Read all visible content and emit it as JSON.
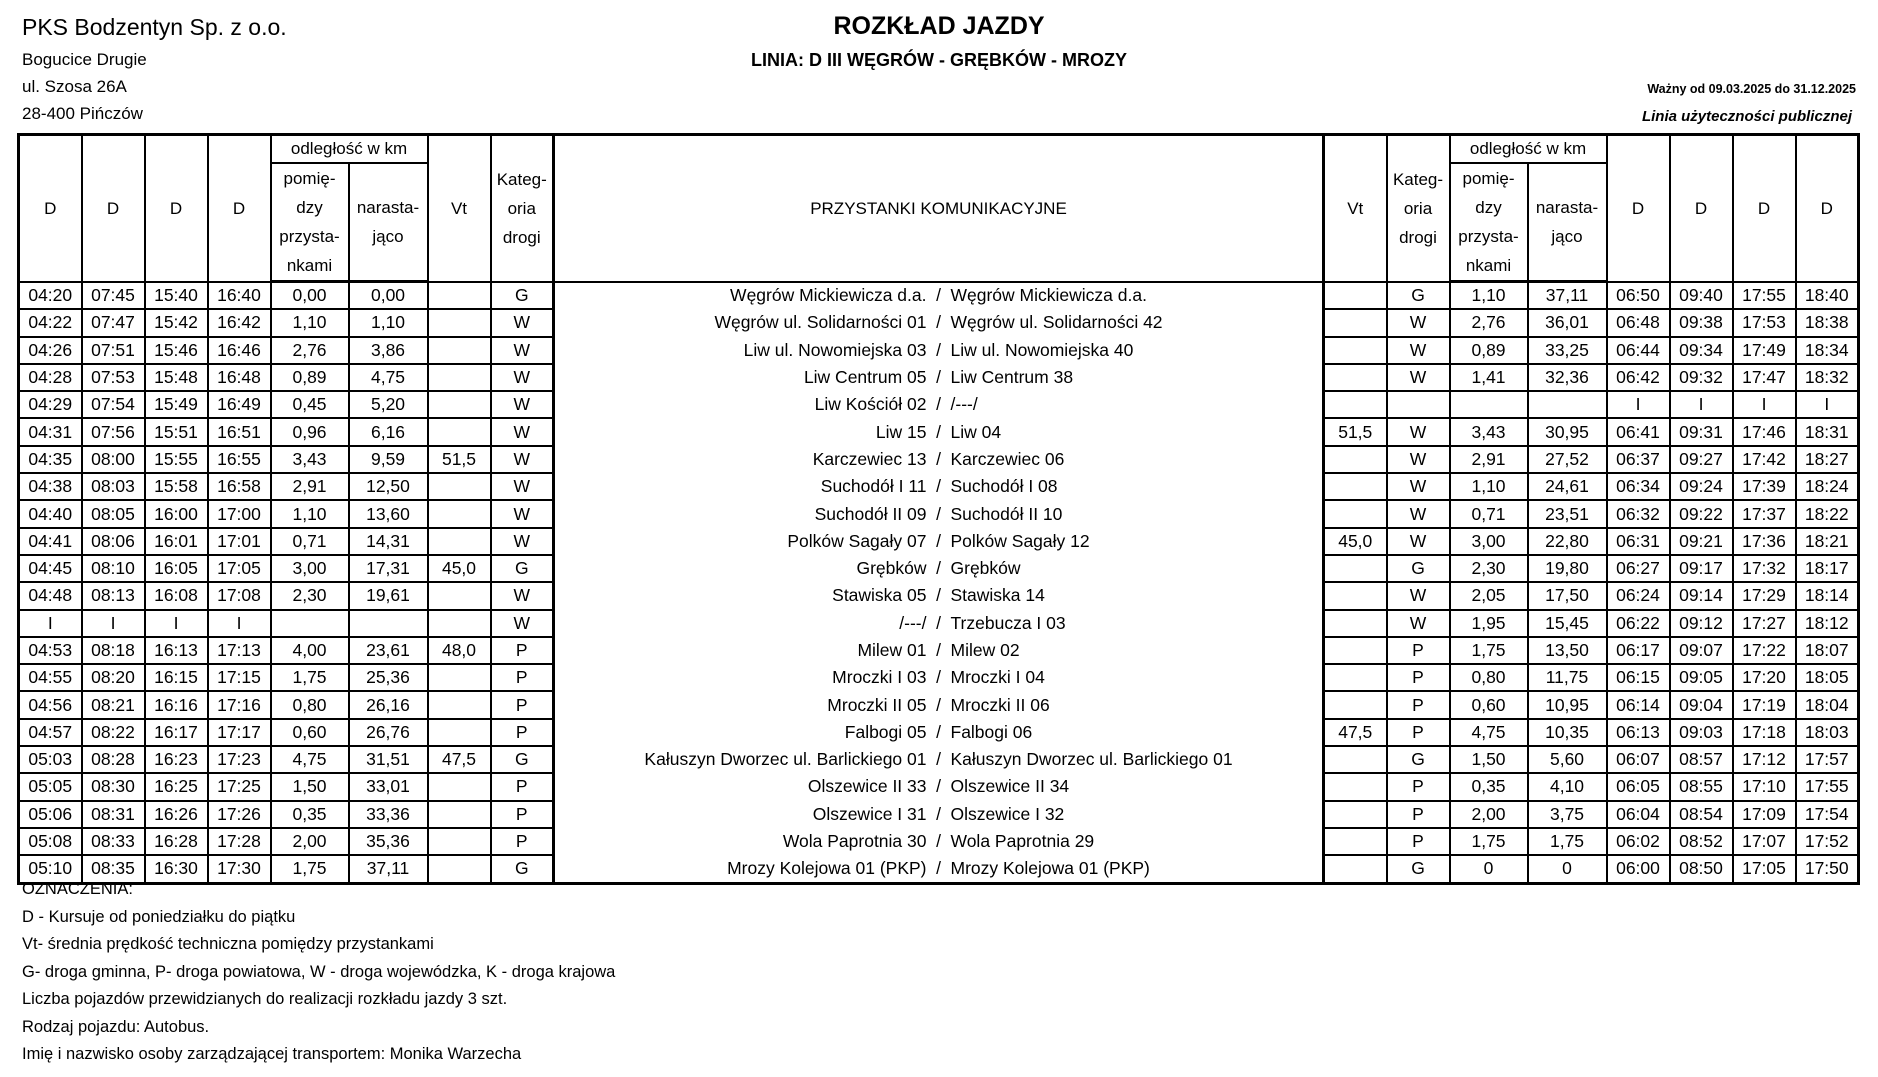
{
  "header": {
    "company": "PKS Bodzentyn Sp. z o.o.",
    "address": [
      "Bogucice Drugie",
      "ul. Szosa 26A",
      "28-400 Pińczów"
    ],
    "title": "ROZKŁAD JAZDY",
    "subtitle": "LINIA: D III WĘGRÓW - GRĘBKÓW - MROZY",
    "valid": "Ważny od 09.03.2025 do 31.12.2025",
    "line_type": "Linia użyteczności publicznej"
  },
  "columns": {
    "course": "D",
    "distance_group": "odległość w km",
    "between": "pomię-dzy przysta-nkami",
    "cumulative": "narasta-jąco",
    "vt": "Vt",
    "category": "Kateg-oria drogi",
    "stops": "PRZYSTANKI KOMUNIKACYJNE"
  },
  "rows": [
    [
      "04:20",
      "07:45",
      "15:40",
      "16:40",
      "0,00",
      "0,00",
      "",
      "G",
      "Węgrów Mickiewicza d.a.",
      "Węgrów Mickiewicza d.a.",
      "",
      "G",
      "1,10",
      "37,11",
      "06:50",
      "09:40",
      "17:55",
      "18:40"
    ],
    [
      "04:22",
      "07:47",
      "15:42",
      "16:42",
      "1,10",
      "1,10",
      "",
      "W",
      "Węgrów ul. Solidarności 01",
      "Węgrów ul. Solidarności 42",
      "",
      "W",
      "2,76",
      "36,01",
      "06:48",
      "09:38",
      "17:53",
      "18:38"
    ],
    [
      "04:26",
      "07:51",
      "15:46",
      "16:46",
      "2,76",
      "3,86",
      "",
      "W",
      "Liw ul. Nowomiejska 03",
      "Liw ul. Nowomiejska 40",
      "",
      "W",
      "0,89",
      "33,25",
      "06:44",
      "09:34",
      "17:49",
      "18:34"
    ],
    [
      "04:28",
      "07:53",
      "15:48",
      "16:48",
      "0,89",
      "4,75",
      "",
      "W",
      "Liw Centrum 05",
      "Liw Centrum 38",
      "",
      "W",
      "1,41",
      "32,36",
      "06:42",
      "09:32",
      "17:47",
      "18:32"
    ],
    [
      "04:29",
      "07:54",
      "15:49",
      "16:49",
      "0,45",
      "5,20",
      "",
      "W",
      "Liw Kościół 02",
      "/---/",
      "",
      "",
      "",
      "",
      "I",
      "I",
      "I",
      "I"
    ],
    [
      "04:31",
      "07:56",
      "15:51",
      "16:51",
      "0,96",
      "6,16",
      "",
      "W",
      "Liw 15",
      "Liw 04",
      "51,5",
      "W",
      "3,43",
      "30,95",
      "06:41",
      "09:31",
      "17:46",
      "18:31"
    ],
    [
      "04:35",
      "08:00",
      "15:55",
      "16:55",
      "3,43",
      "9,59",
      "51,5",
      "W",
      "Karczewiec 13",
      "Karczewiec 06",
      "",
      "W",
      "2,91",
      "27,52",
      "06:37",
      "09:27",
      "17:42",
      "18:27"
    ],
    [
      "04:38",
      "08:03",
      "15:58",
      "16:58",
      "2,91",
      "12,50",
      "",
      "W",
      "Suchodół I 11",
      "Suchodół I 08",
      "",
      "W",
      "1,10",
      "24,61",
      "06:34",
      "09:24",
      "17:39",
      "18:24"
    ],
    [
      "04:40",
      "08:05",
      "16:00",
      "17:00",
      "1,10",
      "13,60",
      "",
      "W",
      "Suchodół II 09",
      "Suchodół II 10",
      "",
      "W",
      "0,71",
      "23,51",
      "06:32",
      "09:22",
      "17:37",
      "18:22"
    ],
    [
      "04:41",
      "08:06",
      "16:01",
      "17:01",
      "0,71",
      "14,31",
      "",
      "W",
      "Polków Sagały 07",
      "Polków Sagały 12",
      "45,0",
      "W",
      "3,00",
      "22,80",
      "06:31",
      "09:21",
      "17:36",
      "18:21"
    ],
    [
      "04:45",
      "08:10",
      "16:05",
      "17:05",
      "3,00",
      "17,31",
      "45,0",
      "G",
      "Grębków",
      "Grębków",
      "",
      "G",
      "2,30",
      "19,80",
      "06:27",
      "09:17",
      "17:32",
      "18:17"
    ],
    [
      "04:48",
      "08:13",
      "16:08",
      "17:08",
      "2,30",
      "19,61",
      "",
      "W",
      "Stawiska 05",
      "Stawiska 14",
      "",
      "W",
      "2,05",
      "17,50",
      "06:24",
      "09:14",
      "17:29",
      "18:14"
    ],
    [
      "I",
      "I",
      "I",
      "I",
      "",
      "",
      "",
      "W",
      "/---/",
      "Trzebucza I 03",
      "",
      "W",
      "1,95",
      "15,45",
      "06:22",
      "09:12",
      "17:27",
      "18:12"
    ],
    [
      "04:53",
      "08:18",
      "16:13",
      "17:13",
      "4,00",
      "23,61",
      "48,0",
      "P",
      "Milew 01",
      "Milew 02",
      "",
      "P",
      "1,75",
      "13,50",
      "06:17",
      "09:07",
      "17:22",
      "18:07"
    ],
    [
      "04:55",
      "08:20",
      "16:15",
      "17:15",
      "1,75",
      "25,36",
      "",
      "P",
      "Mroczki I 03",
      "Mroczki I 04",
      "",
      "P",
      "0,80",
      "11,75",
      "06:15",
      "09:05",
      "17:20",
      "18:05"
    ],
    [
      "04:56",
      "08:21",
      "16:16",
      "17:16",
      "0,80",
      "26,16",
      "",
      "P",
      "Mroczki II 05",
      "Mroczki II 06",
      "",
      "P",
      "0,60",
      "10,95",
      "06:14",
      "09:04",
      "17:19",
      "18:04"
    ],
    [
      "04:57",
      "08:22",
      "16:17",
      "17:17",
      "0,60",
      "26,76",
      "",
      "P",
      "Falbogi 05",
      "Falbogi 06",
      "47,5",
      "P",
      "4,75",
      "10,35",
      "06:13",
      "09:03",
      "17:18",
      "18:03"
    ],
    [
      "05:03",
      "08:28",
      "16:23",
      "17:23",
      "4,75",
      "31,51",
      "47,5",
      "G",
      "Kałuszyn Dworzec ul. Barlickiego 01",
      "Kałuszyn Dworzec ul. Barlickiego 01",
      "",
      "G",
      "1,50",
      "5,60",
      "06:07",
      "08:57",
      "17:12",
      "17:57"
    ],
    [
      "05:05",
      "08:30",
      "16:25",
      "17:25",
      "1,50",
      "33,01",
      "",
      "P",
      "Olszewice II 33",
      "Olszewice II 34",
      "",
      "P",
      "0,35",
      "4,10",
      "06:05",
      "08:55",
      "17:10",
      "17:55"
    ],
    [
      "05:06",
      "08:31",
      "16:26",
      "17:26",
      "0,35",
      "33,36",
      "",
      "P",
      "Olszewice I 31",
      "Olszewice I 32",
      "",
      "P",
      "2,00",
      "3,75",
      "06:04",
      "08:54",
      "17:09",
      "17:54"
    ],
    [
      "05:08",
      "08:33",
      "16:28",
      "17:28",
      "2,00",
      "35,36",
      "",
      "P",
      "Wola Paprotnia 30",
      "Wola Paprotnia 29",
      "",
      "P",
      "1,75",
      "1,75",
      "06:02",
      "08:52",
      "17:07",
      "17:52"
    ],
    [
      "05:10",
      "08:35",
      "16:30",
      "17:30",
      "1,75",
      "37,11",
      "",
      "G",
      "Mrozy Kolejowa 01 (PKP)",
      "Mrozy Kolejowa 01 (PKP)",
      "",
      "G",
      "0",
      "0",
      "06:00",
      "08:50",
      "17:05",
      "17:50"
    ]
  ],
  "stop_separator": "/",
  "footer": [
    "OZNACZENIA:",
    "D - Kursuje od poniedziałku do piątku",
    "Vt- średnia prędkość techniczna pomiędzy przystankami",
    "G- droga gminna, P- droga powiatowa, W - droga wojewódzka, K - droga krajowa",
    "Liczba pojazdów przewidzianych do realizacji rozkładu jazdy 3 szt.",
    "Rodzaj pojazdu: Autobus.",
    "Imię i nazwisko osoby zarządzającej transportem: Monika Warzecha"
  ]
}
